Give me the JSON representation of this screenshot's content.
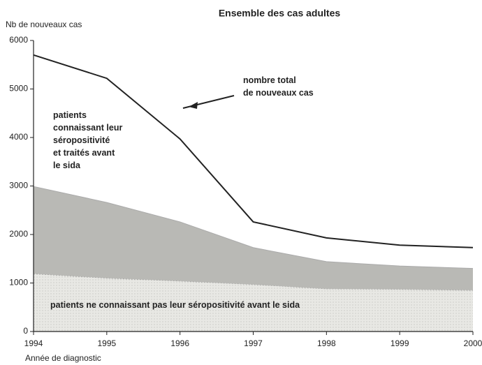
{
  "chart_data": {
    "type": "area",
    "title": "Ensemble des cas adultes",
    "y_label": "Nb de nouveaux cas",
    "x_label": "Année de diagnostic",
    "x": [
      1994,
      1995,
      1996,
      1997,
      1998,
      1999,
      2000
    ],
    "xlim": [
      1994,
      2000
    ],
    "xticks": [
      1994,
      1995,
      1996,
      1997,
      1998,
      1999,
      2000
    ],
    "ylim": [
      0,
      6000
    ],
    "yticks": [
      0,
      1000,
      2000,
      3000,
      4000,
      5000,
      6000
    ],
    "stacked": true,
    "grid": false,
    "series": [
      {
        "name": "patients ne connaissant pas leur séropositivité avant le sida",
        "type": "area",
        "color": "#e4e4e0",
        "values": [
          1190,
          1100,
          1040,
          970,
          880,
          870,
          850
        ]
      },
      {
        "name": "patients\nconnaissant leur\nséropositivité\net traités avant\nle sida",
        "type": "area",
        "color": "#b9b9b5",
        "values": [
          1800,
          1560,
          1220,
          760,
          560,
          480,
          450
        ]
      },
      {
        "name": "nombre total\nde nouveaux cas",
        "type": "line",
        "color": "#222222",
        "values": [
          5700,
          5220,
          3970,
          2260,
          1930,
          1780,
          1730
        ]
      }
    ]
  }
}
